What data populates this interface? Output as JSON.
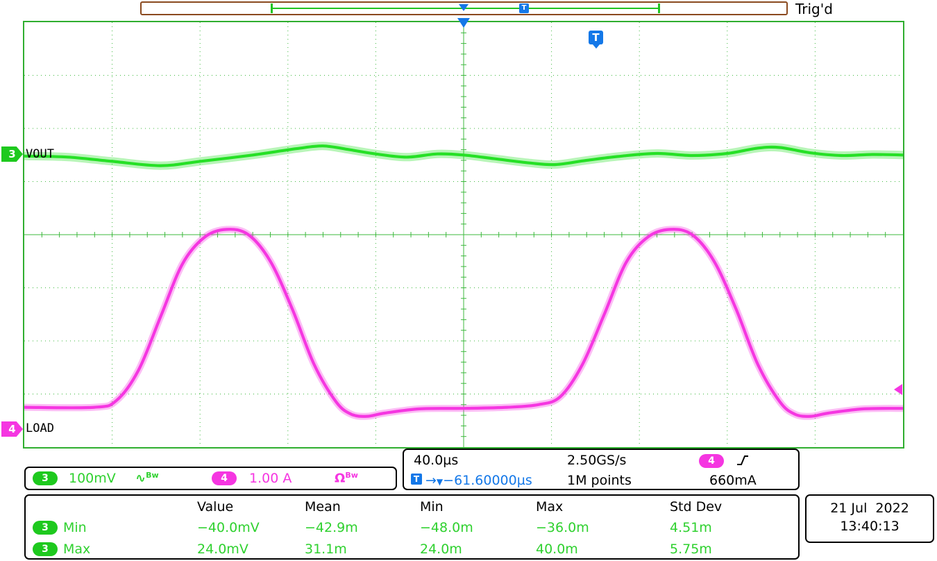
{
  "colors": {
    "ch3": "#26e026",
    "ch4": "#f536e1",
    "grid": "#3cb83c",
    "trigger_blue": "#1478e8",
    "bar_brown": "#8a4a1f"
  },
  "status": {
    "trigger_status": "Trig'd"
  },
  "channels": {
    "ch3": {
      "number": "3",
      "label": "VOUT",
      "scale": "100mV",
      "coupling_icon": "∿",
      "bw_label": "Bw"
    },
    "ch4": {
      "number": "4",
      "label": "LOAD",
      "scale": "1.00 A",
      "coupling_icon": "Ω",
      "bw_label": "Bw"
    }
  },
  "horizontal": {
    "time_per_div": "40.0µs",
    "sample_rate": "2.50GS/s",
    "record_length": "1M points"
  },
  "trigger": {
    "source": "4",
    "slope": "rising",
    "t_label": "T",
    "arrow": "→",
    "marker": "▼",
    "position": "−61.60000µs",
    "level": "660mA"
  },
  "datetime": {
    "date": "21 Jul  2022",
    "time": "13:40:13"
  },
  "measurements": {
    "headers": [
      "Value",
      "Mean",
      "Min",
      "Max",
      "Std Dev"
    ],
    "rows": [
      {
        "channel": "3",
        "name": "Min",
        "value": "−40.0mV",
        "mean": "−42.9m",
        "min": "−48.0m",
        "max": "−36.0m",
        "std_dev": "4.51m"
      },
      {
        "channel": "3",
        "name": "Max",
        "value": "24.0mV",
        "mean": "31.1m",
        "min": "24.0m",
        "max": "40.0m",
        "std_dev": "5.75m"
      }
    ]
  },
  "chart_data": {
    "type": "line",
    "title": "Oscilloscope capture: VOUT ripple vs LOAD current pulses",
    "x_units": "divisions (40.0µs per division, 10 divisions)",
    "y_units": "divisions from screen center",
    "x_range_divisions": [
      0,
      10
    ],
    "y_range_divisions": [
      -4,
      4
    ],
    "grid": "dotted, 10x8 divisions, solid center crosshair with minor ticks",
    "series": [
      {
        "name": "VOUT",
        "channel": 3,
        "scale": "100mV/div",
        "color": "#26e026",
        "points": [
          [
            0,
            1.48
          ],
          [
            0.5,
            1.46
          ],
          [
            1.0,
            1.38
          ],
          [
            1.55,
            1.3
          ],
          [
            2.0,
            1.38
          ],
          [
            2.6,
            1.5
          ],
          [
            3.1,
            1.62
          ],
          [
            3.4,
            1.67
          ],
          [
            3.7,
            1.6
          ],
          [
            4.0,
            1.52
          ],
          [
            4.35,
            1.46
          ],
          [
            4.7,
            1.52
          ],
          [
            5.0,
            1.5
          ],
          [
            5.35,
            1.43
          ],
          [
            5.75,
            1.35
          ],
          [
            6.05,
            1.32
          ],
          [
            6.4,
            1.4
          ],
          [
            6.8,
            1.48
          ],
          [
            7.2,
            1.53
          ],
          [
            7.6,
            1.49
          ],
          [
            8.0,
            1.53
          ],
          [
            8.35,
            1.63
          ],
          [
            8.6,
            1.64
          ],
          [
            8.95,
            1.54
          ],
          [
            9.3,
            1.49
          ],
          [
            9.65,
            1.51
          ],
          [
            10,
            1.5
          ]
        ]
      },
      {
        "name": "LOAD",
        "channel": 4,
        "scale": "1.00 A/div",
        "color": "#f536e1",
        "points": [
          [
            0,
            -3.25
          ],
          [
            0.8,
            -3.25
          ],
          [
            1.05,
            -3.12
          ],
          [
            1.3,
            -2.55
          ],
          [
            1.55,
            -1.55
          ],
          [
            1.8,
            -0.55
          ],
          [
            2.05,
            -0.05
          ],
          [
            2.3,
            0.1
          ],
          [
            2.55,
            0.0
          ],
          [
            2.8,
            -0.5
          ],
          [
            3.05,
            -1.4
          ],
          [
            3.3,
            -2.45
          ],
          [
            3.55,
            -3.15
          ],
          [
            3.72,
            -3.38
          ],
          [
            3.9,
            -3.42
          ],
          [
            4.1,
            -3.36
          ],
          [
            4.5,
            -3.28
          ],
          [
            5.0,
            -3.27
          ],
          [
            5.5,
            -3.25
          ],
          [
            5.85,
            -3.2
          ],
          [
            6.1,
            -3.05
          ],
          [
            6.35,
            -2.45
          ],
          [
            6.6,
            -1.5
          ],
          [
            6.85,
            -0.52
          ],
          [
            7.1,
            -0.04
          ],
          [
            7.35,
            0.1
          ],
          [
            7.6,
            0.0
          ],
          [
            7.85,
            -0.5
          ],
          [
            8.1,
            -1.4
          ],
          [
            8.35,
            -2.45
          ],
          [
            8.6,
            -3.15
          ],
          [
            8.77,
            -3.38
          ],
          [
            8.95,
            -3.42
          ],
          [
            9.15,
            -3.36
          ],
          [
            9.55,
            -3.28
          ],
          [
            10,
            -3.27
          ]
        ]
      }
    ]
  }
}
